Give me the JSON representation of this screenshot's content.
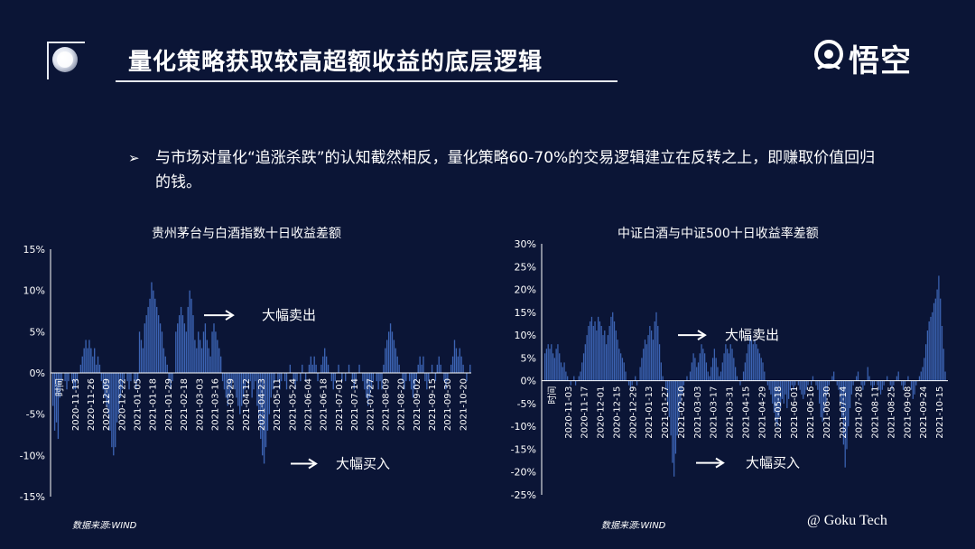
{
  "header": {
    "title": "量化策略获取较高超额收益的底层逻辑",
    "logo_text": "悟空"
  },
  "bullet": {
    "marker": "➢",
    "text": "与市场对量化“追涨杀跌”的认知截然相反，量化策略60-70%的交易逻辑建立在反转之上，即赚取价值回归的钱。"
  },
  "footer": {
    "credit": "@ Goku Tech"
  },
  "colors": {
    "background": "#0b1536",
    "bar": "#3c64b4",
    "axis": "#ffffff",
    "text": "#ffffff"
  },
  "chart_data": [
    {
      "type": "bar",
      "title": "贵州茅台与白酒指数十日收益差额",
      "source": "数据来源:WIND",
      "xlabel": "",
      "ylabel": "",
      "ylim": [
        -15,
        15
      ],
      "y_ticks": [
        "15%",
        "10%",
        "5%",
        "0%",
        "-5%",
        "-10%",
        "-15%"
      ],
      "y_tick_values": [
        15,
        10,
        5,
        0,
        -5,
        -10,
        -15
      ],
      "x_ticks": [
        "时间",
        "2020-11-13",
        "2020-11-26",
        "2020-12-09",
        "2020-12-22",
        "2021-01-05",
        "2021-01-18",
        "2021-01-29",
        "2021-02-18",
        "2021-03-03",
        "2021-03-16",
        "2021-03-29",
        "2021-04-12",
        "2021-04-23",
        "2021-05-11",
        "2021-05-24",
        "2021-06-04",
        "2021-06-18",
        "2021-07-01",
        "2021-07-14",
        "2021-07-27",
        "2021-08-09",
        "2021-08-20",
        "2021-09-02",
        "2021-09-15",
        "2021-09-30",
        "2021-10-20"
      ],
      "annotations": [
        {
          "text": "大幅卖出",
          "y_at": 7
        },
        {
          "text": "大幅买入",
          "y_at": -11
        }
      ],
      "values": [
        -4,
        -7,
        -6,
        -8,
        -3,
        -1,
        0,
        -1,
        -2,
        -1,
        0,
        -1,
        -2,
        -2,
        -1,
        0,
        1,
        2,
        3,
        4,
        3,
        4,
        3,
        2,
        3,
        1,
        2,
        1,
        -1,
        -2,
        -3,
        -4,
        -5,
        -7,
        -9,
        -10,
        -9,
        -6,
        -5,
        -3,
        -2,
        -1,
        0,
        -1,
        -2,
        -1,
        0,
        -1,
        -2,
        -1,
        5,
        4,
        3,
        6,
        7,
        8,
        9,
        11,
        10,
        9,
        8,
        7,
        6,
        5,
        3,
        2,
        1,
        -1,
        -2,
        -1,
        0,
        5,
        6,
        7,
        8,
        7,
        6,
        5,
        8,
        10,
        9,
        7,
        4,
        3,
        5,
        4,
        3,
        5,
        6,
        4,
        3,
        2,
        5,
        6,
        5,
        4,
        3,
        2,
        -1,
        -2,
        -3,
        -4,
        -3,
        -2,
        -1,
        -2,
        -3,
        -4,
        -5,
        -4,
        -3,
        -2,
        -1,
        -2,
        -1,
        -3,
        -2,
        -1,
        -4,
        -6,
        -8,
        -10,
        -11,
        -9,
        -7,
        -5,
        -3,
        -2,
        -1,
        0,
        -1,
        -2,
        -1,
        0,
        -1,
        -2,
        0,
        1,
        0,
        -1,
        -2,
        -1,
        0,
        -1,
        1,
        0,
        -1,
        0,
        1,
        2,
        1,
        2,
        1,
        -1,
        0,
        1,
        2,
        3,
        2,
        1,
        0,
        -1,
        -2,
        -1,
        0,
        1,
        0,
        -1,
        0,
        -1,
        0,
        1,
        0,
        -1,
        -2,
        -1,
        0,
        1,
        0,
        -1,
        -2,
        -3,
        -4,
        -3,
        -2,
        -1,
        0,
        -1,
        -2,
        -1,
        -2,
        1,
        3,
        4,
        5,
        6,
        5,
        4,
        3,
        2,
        1,
        0,
        -1,
        -2,
        -1,
        0,
        -1,
        -2,
        -3,
        -2,
        -1,
        1,
        2,
        1,
        2,
        -1,
        -2,
        -1,
        0,
        1,
        0,
        -1,
        1,
        2,
        1,
        0,
        -1,
        -2,
        -1,
        0,
        1,
        2,
        4,
        3,
        2,
        3,
        2,
        1,
        0,
        -1,
        0,
        1
      ]
    },
    {
      "type": "bar",
      "title": "中证白酒与中证500十日收益率差额",
      "source": "数据来源:WIND",
      "xlabel": "",
      "ylabel": "",
      "ylim": [
        -25,
        30
      ],
      "y_ticks": [
        "30%",
        "25%",
        "20%",
        "15%",
        "10%",
        "5%",
        "0%",
        "-5%",
        "-10%",
        "-15%",
        "-20%",
        "-25%"
      ],
      "y_tick_values": [
        30,
        25,
        20,
        15,
        10,
        5,
        0,
        -5,
        -10,
        -15,
        -20,
        -25
      ],
      "x_ticks": [
        "时间",
        "2020-11-03",
        "2020-11-17",
        "2020-12-01",
        "2020-12-15",
        "2020-12-29",
        "2021-01-13",
        "2021-01-27",
        "2021-02-10",
        "2021-03-03",
        "2021-03-17",
        "2021-03-31",
        "2021-04-15",
        "2021-04-29",
        "2021-05-18",
        "2021-06-01",
        "2021-06-16",
        "2021-06-30",
        "2021-07-14",
        "2021-07-28",
        "2021-08-11",
        "2021-08-25",
        "2021-09-08",
        "2021-09-24",
        "2021-10-15"
      ],
      "annotations": [
        {
          "text": "大幅卖出",
          "y_at": 10
        },
        {
          "text": "大幅买入",
          "y_at": -18
        }
      ],
      "values": [
        6,
        7,
        8,
        7,
        8,
        6,
        5,
        7,
        8,
        6,
        4,
        3,
        4,
        2,
        1,
        0,
        -1,
        0,
        1,
        -1,
        0,
        1,
        2,
        4,
        6,
        8,
        10,
        12,
        13,
        14,
        12,
        13,
        11,
        14,
        13,
        12,
        10,
        11,
        8,
        10,
        12,
        14,
        15,
        13,
        11,
        9,
        7,
        6,
        5,
        4,
        2,
        0,
        -1,
        -2,
        -1,
        0,
        1,
        -1,
        0,
        3,
        5,
        7,
        9,
        8,
        10,
        12,
        11,
        9,
        13,
        15,
        12,
        8,
        4,
        1,
        0,
        -2,
        -5,
        -8,
        -12,
        -18,
        -21,
        -16,
        -12,
        -8,
        -5,
        -3,
        -1,
        0,
        1,
        0,
        2,
        4,
        6,
        5,
        3,
        4,
        6,
        8,
        7,
        6,
        4,
        2,
        1,
        3,
        5,
        7,
        5,
        3,
        1,
        2,
        4,
        6,
        8,
        7,
        6,
        8,
        7,
        5,
        3,
        1,
        0,
        -1,
        0,
        2,
        4,
        6,
        8,
        10,
        9,
        8,
        9,
        8,
        7,
        6,
        5,
        4,
        2,
        0,
        -1,
        -2,
        -3,
        -5,
        -7,
        -9,
        -10,
        -8,
        -6,
        -4,
        -5,
        -3,
        -6,
        -4,
        -2,
        -1,
        -2,
        -1,
        0,
        -1,
        -2,
        -3,
        -4,
        -3,
        -2,
        -1,
        0,
        -1,
        1,
        0,
        -1,
        -2,
        -5,
        -8,
        -9,
        -7,
        -5,
        -3,
        -1,
        0,
        1,
        2,
        0,
        -1,
        -2,
        -5,
        -8,
        -14,
        -19,
        -15,
        -10,
        -6,
        -3,
        -1,
        0,
        1,
        2,
        0,
        -1,
        -2,
        -1,
        0,
        3,
        1,
        -1,
        -2,
        -1,
        0,
        -1,
        -2,
        -3,
        -2,
        -1,
        0,
        1,
        0,
        -1,
        -2,
        -1,
        0,
        1,
        2,
        0,
        -1,
        -2,
        -1,
        0,
        1,
        0,
        -2,
        -4,
        -3,
        -1,
        0,
        1,
        2,
        3,
        5,
        8,
        11,
        13,
        14,
        15,
        17,
        18,
        20,
        23,
        18,
        12,
        7,
        2,
        0
      ]
    }
  ]
}
